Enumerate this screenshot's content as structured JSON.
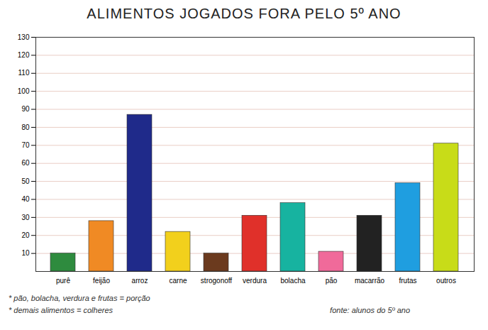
{
  "chart_data": {
    "type": "bar",
    "title": "ALIMENTOS JOGADOS FORA PELO 5º ANO",
    "categories": [
      "purê",
      "feijão",
      "arroz",
      "carne",
      "strogonoff",
      "verdura",
      "bolacha",
      "pão",
      "macarrão",
      "frutas",
      "outros"
    ],
    "values": [
      10,
      28,
      87,
      22,
      10,
      31,
      38,
      11,
      31,
      49,
      71
    ],
    "colors": [
      "#2e8b3e",
      "#f08a24",
      "#1f2a8a",
      "#f2d01c",
      "#6b3a1e",
      "#e0302a",
      "#17b3a0",
      "#f06a9a",
      "#222222",
      "#1f9ee0",
      "#c8dc18"
    ],
    "ylim": [
      0,
      130
    ],
    "yticks": [
      10,
      20,
      30,
      40,
      50,
      60,
      70,
      80,
      90,
      100,
      110,
      120,
      130
    ],
    "grid": true,
    "annotations": [
      "* pão, bolacha, verdura e frutas = porção",
      "* demais alimentos = colheres",
      "fonte: alunos do 5º ano"
    ]
  }
}
